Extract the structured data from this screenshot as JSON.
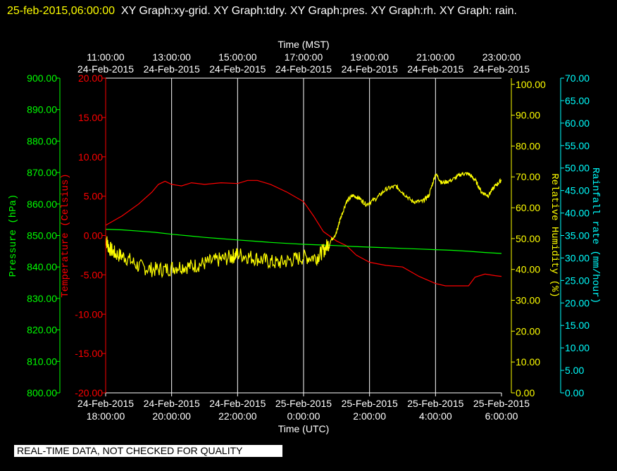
{
  "header": {
    "timestamp": "25-feb-2015,06:00:00",
    "graphs": "XY Graph:xy-grid.  XY Graph:tdry.  XY Graph:pres.  XY Graph:rh.  XY Graph: rain."
  },
  "footer": {
    "notice": "REAL-TIME DATA, NOT CHECKED FOR QUALITY"
  },
  "colors": {
    "temperature": "#ff0000",
    "pressure": "#00ff00",
    "humidity": "#ffff00",
    "rain": "#00ffff",
    "grid": "#ffffff"
  },
  "chart_data": {
    "type": "line",
    "x_top": {
      "label": "Time (MST)",
      "ticks": [
        {
          "time": "11:00:00",
          "date": "24-Feb-2015"
        },
        {
          "time": "13:00:00",
          "date": "24-Feb-2015"
        },
        {
          "time": "15:00:00",
          "date": "24-Feb-2015"
        },
        {
          "time": "17:00:00",
          "date": "24-Feb-2015"
        },
        {
          "time": "19:00:00",
          "date": "24-Feb-2015"
        },
        {
          "time": "21:00:00",
          "date": "24-Feb-2015"
        },
        {
          "time": "23:00:00",
          "date": "24-Feb-2015"
        }
      ]
    },
    "x_bottom": {
      "label": "Time (UTC)",
      "ticks": [
        {
          "date": "24-Feb-2015",
          "time": "18:00:00"
        },
        {
          "date": "24-Feb-2015",
          "time": "20:00:00"
        },
        {
          "date": "24-Feb-2015",
          "time": "22:00:00"
        },
        {
          "date": "25-Feb-2015",
          "time": "0:00:00"
        },
        {
          "date": "25-Feb-2015",
          "time": "2:00:00"
        },
        {
          "date": "25-Feb-2015",
          "time": "4:00:00"
        },
        {
          "date": "25-Feb-2015",
          "time": "6:00:00"
        }
      ]
    },
    "x_unit": "hours since 24-Feb-2015 18:00 UTC",
    "xlim": [
      0,
      12
    ],
    "axes": {
      "pressure": {
        "label": "Pressure (hPa)",
        "ylim": [
          800,
          900
        ],
        "ticks": [
          "900.00",
          "890.00",
          "880.00",
          "870.00",
          "860.00",
          "850.00",
          "840.00",
          "830.00",
          "820.00",
          "810.00",
          "800.00"
        ]
      },
      "temperature": {
        "label": "Temperature (Celsius)",
        "ylim": [
          -20,
          20
        ],
        "ticks": [
          "20.00",
          "15.00",
          "10.00",
          "5.00",
          "0.00",
          "-5.00",
          "-10.00",
          "-15.00",
          "-20.00"
        ]
      },
      "humidity": {
        "label": "Relative Humidity (%)",
        "ylim": [
          0,
          102
        ],
        "ticks": [
          "100.00",
          "90.00",
          "80.00",
          "70.00",
          "60.00",
          "50.00",
          "40.00",
          "30.00",
          "20.00",
          "10.00",
          "0.00"
        ]
      },
      "rain": {
        "label": "Rainfall rate (mm/hour)",
        "ylim": [
          0,
          70
        ],
        "ticks": [
          "70.00",
          "65.00",
          "60.00",
          "55.00",
          "50.00",
          "45.00",
          "40.00",
          "35.00",
          "30.00",
          "25.00",
          "20.00",
          "15.00",
          "10.00",
          "5.00",
          "0.00"
        ]
      }
    },
    "grid": "vertical",
    "series": [
      {
        "axis": "temperature",
        "color": "#ff0000",
        "x": [
          0,
          0.5,
          1,
          1.4,
          1.6,
          1.8,
          2,
          2.3,
          2.6,
          3,
          3.5,
          4,
          4.3,
          4.6,
          5,
          5.5,
          6,
          6.3,
          6.6,
          7,
          7.3,
          7.6,
          8,
          8.5,
          9,
          9.5,
          10,
          10.3,
          10.6,
          11,
          11.2,
          11.5,
          11.8,
          12
        ],
        "y": [
          1.3,
          2.5,
          4.0,
          5.5,
          6.5,
          6.9,
          6.5,
          6.3,
          6.7,
          6.5,
          6.7,
          6.6,
          7.0,
          7.0,
          6.5,
          5.5,
          4.3,
          2.5,
          0.5,
          -0.7,
          -1.3,
          -2.5,
          -3.4,
          -3.8,
          -4.0,
          -5.2,
          -6.1,
          -6.4,
          -6.4,
          -6.4,
          -5.3,
          -4.9,
          -5.1,
          -5.2
        ]
      },
      {
        "axis": "pressure",
        "color": "#00ff00",
        "x": [
          0,
          0.5,
          1,
          1.5,
          2,
          2.5,
          3,
          3.5,
          4,
          4.5,
          5,
          5.5,
          6,
          6.5,
          7,
          7.5,
          8,
          8.5,
          9,
          9.5,
          10,
          10.5,
          11,
          11.5,
          12
        ],
        "y": [
          852.0,
          851.8,
          851.4,
          851.0,
          850.4,
          849.9,
          849.4,
          849.0,
          848.6,
          848.2,
          847.8,
          847.5,
          847.2,
          847.0,
          846.8,
          846.5,
          846.3,
          846.1,
          845.9,
          845.7,
          845.5,
          845.3,
          845.0,
          844.6,
          844.3
        ]
      },
      {
        "axis": "humidity",
        "color": "#ffff00",
        "noisy": true,
        "x": [
          0,
          0.1,
          0.3,
          0.6,
          1,
          1.4,
          1.8,
          2.2,
          2.6,
          3,
          3.4,
          3.8,
          4,
          4.4,
          4.8,
          5.2,
          5.6,
          6,
          6.4,
          6.6,
          6.8,
          7,
          7.1,
          7.3,
          7.5,
          7.7,
          7.9,
          8.2,
          8.5,
          8.8,
          9,
          9.3,
          9.6,
          9.8,
          10,
          10.2,
          10.5,
          10.8,
          11,
          11.2,
          11.4,
          11.6,
          11.8,
          12
        ],
        "y": [
          50,
          47,
          45,
          44,
          41,
          40,
          40,
          41,
          41,
          42,
          43,
          44,
          45,
          44,
          43,
          42,
          43,
          44,
          44,
          46,
          49,
          52,
          56,
          62,
          64,
          63,
          61,
          63,
          66,
          67,
          65,
          62,
          62,
          64,
          71,
          68,
          69,
          71,
          71,
          69,
          65,
          64,
          67,
          69
        ]
      }
    ]
  }
}
